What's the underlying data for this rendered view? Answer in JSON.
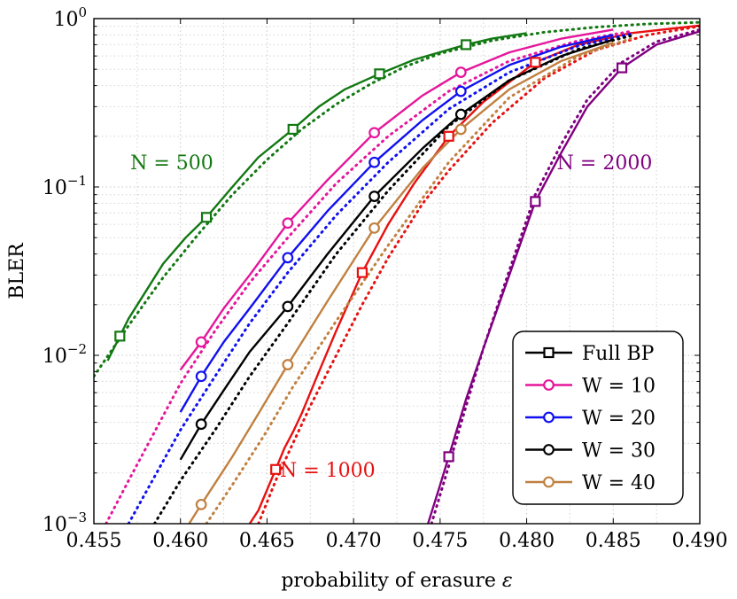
{
  "chart_data": {
    "type": "line",
    "xlabel_text": "probability of erasure",
    "xlabel_symbol": "ε",
    "ylabel": "BLER",
    "xlim": [
      0.455,
      0.49
    ],
    "ylim": [
      0.001,
      1
    ],
    "yscale": "log",
    "grid": true,
    "x_ticks": [
      "0.455",
      "0.460",
      "0.465",
      "0.470",
      "0.475",
      "0.480",
      "0.485",
      "0.490"
    ],
    "x_tick_values": [
      0.455,
      0.46,
      0.465,
      0.47,
      0.475,
      0.48,
      0.485,
      0.49
    ],
    "y_ticks": [
      {
        "value": 0.001,
        "base": "10",
        "exp": "−3"
      },
      {
        "value": 0.01,
        "base": "10",
        "exp": "−2"
      },
      {
        "value": 0.1,
        "base": "10",
        "exp": "−1"
      },
      {
        "value": 1,
        "base": "10",
        "exp": "0"
      }
    ],
    "legend": {
      "position": "bottom-right",
      "entries": [
        {
          "label": "Full BP",
          "color": "#000000",
          "marker": "square"
        },
        {
          "label": "W = 10",
          "color": "#e5169b",
          "marker": "circle"
        },
        {
          "label": "W = 20",
          "color": "#1010f0",
          "marker": "circle"
        },
        {
          "label": "W = 30",
          "color": "#000000",
          "marker": "circle"
        },
        {
          "label": "W = 40",
          "color": "#c08040",
          "marker": "circle"
        }
      ]
    },
    "annotations": [
      {
        "text": "N = 500",
        "color": "#127812",
        "at": [
          0.4595,
          0.14
        ]
      },
      {
        "text": "N = 1000",
        "color": "#e81010",
        "at": [
          0.4685,
          0.0021
        ]
      },
      {
        "text": "N = 2000",
        "color": "#800080",
        "at": [
          0.4845,
          0.14
        ]
      }
    ],
    "series": [
      {
        "name": "N=500 Full BP",
        "color": "#127812",
        "style": "solid",
        "marker": "square",
        "x": [
          0.4558,
          0.4565,
          0.457,
          0.458,
          0.459,
          0.4603,
          0.4615,
          0.463,
          0.4645,
          0.4665,
          0.468,
          0.4695,
          0.4715,
          0.4735,
          0.4765,
          0.478,
          0.48
        ],
        "y": [
          0.0093,
          0.013,
          0.0165,
          0.024,
          0.035,
          0.05,
          0.066,
          0.1,
          0.15,
          0.22,
          0.3,
          0.38,
          0.47,
          0.57,
          0.7,
          0.76,
          0.82
        ],
        "markers_x": [
          0.4565,
          0.4615,
          0.4665,
          0.4715,
          0.4765
        ],
        "markers_y": [
          0.013,
          0.066,
          0.22,
          0.47,
          0.7
        ]
      },
      {
        "name": "N=500 asymptotic",
        "color": "#127812",
        "style": "dotted",
        "x": [
          0.455,
          0.457,
          0.459,
          0.461,
          0.463,
          0.465,
          0.467,
          0.469,
          0.471,
          0.473,
          0.475,
          0.478,
          0.481,
          0.484,
          0.487,
          0.49
        ],
        "y": [
          0.0075,
          0.015,
          0.029,
          0.052,
          0.09,
          0.145,
          0.22,
          0.31,
          0.41,
          0.52,
          0.62,
          0.74,
          0.83,
          0.89,
          0.93,
          0.95
        ]
      },
      {
        "name": "N=2000 Full BP",
        "color": "#800080",
        "style": "solid",
        "marker": "square",
        "x": [
          0.4743,
          0.475,
          0.4755,
          0.4765,
          0.4775,
          0.479,
          0.4805,
          0.482,
          0.4835,
          0.4855,
          0.4875,
          0.49
        ],
        "y": [
          0.001,
          0.0017,
          0.0025,
          0.0055,
          0.011,
          0.03,
          0.082,
          0.16,
          0.3,
          0.51,
          0.7,
          0.84
        ],
        "markers_x": [
          0.4755,
          0.4805,
          0.4855
        ],
        "markers_y": [
          0.0025,
          0.082,
          0.51
        ]
      },
      {
        "name": "N=2000 asymptotic",
        "color": "#800080",
        "style": "dotted",
        "x": [
          0.4745,
          0.4755,
          0.4765,
          0.4775,
          0.479,
          0.4805,
          0.482,
          0.4835,
          0.4855,
          0.4875,
          0.49
        ],
        "y": [
          0.001,
          0.0022,
          0.005,
          0.011,
          0.032,
          0.09,
          0.18,
          0.33,
          0.55,
          0.73,
          0.86
        ]
      },
      {
        "name": "N=1000 Full BP",
        "color": "#e81010",
        "style": "solid",
        "marker": "square",
        "x": [
          0.464,
          0.4645,
          0.4655,
          0.466,
          0.4665,
          0.467,
          0.468,
          0.469,
          0.4705,
          0.472,
          0.4735,
          0.4755,
          0.4775,
          0.4805,
          0.483,
          0.486,
          0.49
        ],
        "y": [
          0.001,
          0.0012,
          0.0021,
          0.0028,
          0.0035,
          0.0045,
          0.008,
          0.014,
          0.031,
          0.06,
          0.105,
          0.2,
          0.32,
          0.55,
          0.7,
          0.82,
          0.91
        ],
        "markers_x": [
          0.4655,
          0.4705,
          0.4755,
          0.4805
        ],
        "markers_y": [
          0.0021,
          0.031,
          0.2,
          0.55
        ]
      },
      {
        "name": "N=1000 asymptotic",
        "color": "#e81010",
        "style": "dotted",
        "x": [
          0.4645,
          0.4655,
          0.4665,
          0.4675,
          0.469,
          0.4705,
          0.472,
          0.474,
          0.4755,
          0.478,
          0.481,
          0.484,
          0.487,
          0.49
        ],
        "y": [
          0.001,
          0.0018,
          0.003,
          0.005,
          0.01,
          0.02,
          0.038,
          0.08,
          0.125,
          0.24,
          0.44,
          0.65,
          0.8,
          0.9
        ]
      },
      {
        "name": "W=10",
        "color": "#e5169b",
        "style": "solid",
        "marker": "circle",
        "x": [
          0.46,
          0.4612,
          0.4625,
          0.464,
          0.4662,
          0.4685,
          0.4712,
          0.474,
          0.4762,
          0.479,
          0.482,
          0.485
        ],
        "y": [
          0.0082,
          0.012,
          0.019,
          0.03,
          0.061,
          0.11,
          0.21,
          0.35,
          0.48,
          0.63,
          0.76,
          0.86
        ],
        "markers_x": [
          0.4612,
          0.4662,
          0.4712,
          0.4762
        ],
        "markers_y": [
          0.012,
          0.061,
          0.21,
          0.48
        ]
      },
      {
        "name": "W=10 asymptotic",
        "color": "#e5169b",
        "style": "dotted",
        "x": [
          0.4557,
          0.457,
          0.4585,
          0.46,
          0.462,
          0.464,
          0.4662,
          0.469,
          0.472,
          0.4755,
          0.479,
          0.483,
          0.486
        ],
        "y": [
          0.001,
          0.0018,
          0.0035,
          0.0068,
          0.014,
          0.027,
          0.05,
          0.105,
          0.2,
          0.37,
          0.56,
          0.74,
          0.84
        ]
      },
      {
        "name": "W=20",
        "color": "#1010f0",
        "style": "solid",
        "marker": "circle",
        "x": [
          0.46,
          0.4612,
          0.4625,
          0.464,
          0.4662,
          0.4685,
          0.4712,
          0.474,
          0.4762,
          0.479,
          0.482,
          0.485
        ],
        "y": [
          0.0046,
          0.0075,
          0.012,
          0.019,
          0.038,
          0.072,
          0.14,
          0.25,
          0.37,
          0.53,
          0.68,
          0.8
        ],
        "markers_x": [
          0.4612,
          0.4662,
          0.4712,
          0.4762
        ],
        "markers_y": [
          0.0075,
          0.038,
          0.14,
          0.37
        ]
      },
      {
        "name": "W=20 asymptotic",
        "color": "#1010f0",
        "style": "dotted",
        "x": [
          0.457,
          0.4585,
          0.46,
          0.462,
          0.464,
          0.4662,
          0.469,
          0.472,
          0.4755,
          0.479,
          0.483,
          0.486
        ],
        "y": [
          0.001,
          0.0019,
          0.0036,
          0.0075,
          0.0155,
          0.031,
          0.068,
          0.14,
          0.29,
          0.48,
          0.69,
          0.81
        ]
      },
      {
        "name": "W=30",
        "color": "#000000",
        "style": "solid",
        "marker": "circle",
        "x": [
          0.46,
          0.4612,
          0.4625,
          0.464,
          0.4662,
          0.4685,
          0.4712,
          0.474,
          0.4762,
          0.479,
          0.482,
          0.485
        ],
        "y": [
          0.0024,
          0.0039,
          0.0062,
          0.0105,
          0.0195,
          0.04,
          0.088,
          0.17,
          0.27,
          0.43,
          0.6,
          0.75
        ],
        "markers_x": [
          0.4612,
          0.4662,
          0.4712,
          0.4762
        ],
        "markers_y": [
          0.0039,
          0.0195,
          0.088,
          0.27
        ]
      },
      {
        "name": "W=30 asymptotic",
        "color": "#000000",
        "style": "dotted",
        "x": [
          0.4585,
          0.46,
          0.462,
          0.464,
          0.4662,
          0.469,
          0.472,
          0.4755,
          0.479,
          0.483,
          0.486
        ],
        "y": [
          0.001,
          0.0018,
          0.0036,
          0.0075,
          0.0155,
          0.04,
          0.095,
          0.23,
          0.43,
          0.66,
          0.79
        ]
      },
      {
        "name": "W=40",
        "color": "#c08040",
        "style": "solid",
        "marker": "circle",
        "x": [
          0.4605,
          0.4612,
          0.463,
          0.4645,
          0.4662,
          0.4685,
          0.4712,
          0.474,
          0.4762,
          0.479,
          0.482,
          0.485
        ],
        "y": [
          0.001,
          0.0013,
          0.0025,
          0.0045,
          0.0088,
          0.021,
          0.057,
          0.13,
          0.22,
          0.38,
          0.56,
          0.72
        ],
        "markers_x": [
          0.4612,
          0.4662,
          0.4712,
          0.4762
        ],
        "markers_y": [
          0.0013,
          0.0088,
          0.057,
          0.22
        ]
      },
      {
        "name": "W=40 asymptotic",
        "color": "#c08040",
        "style": "dotted",
        "x": [
          0.4615,
          0.463,
          0.4648,
          0.4665,
          0.469,
          0.472,
          0.4755,
          0.479,
          0.483,
          0.486
        ],
        "y": [
          0.001,
          0.0017,
          0.0033,
          0.0065,
          0.016,
          0.045,
          0.14,
          0.34,
          0.6,
          0.76
        ]
      }
    ]
  }
}
